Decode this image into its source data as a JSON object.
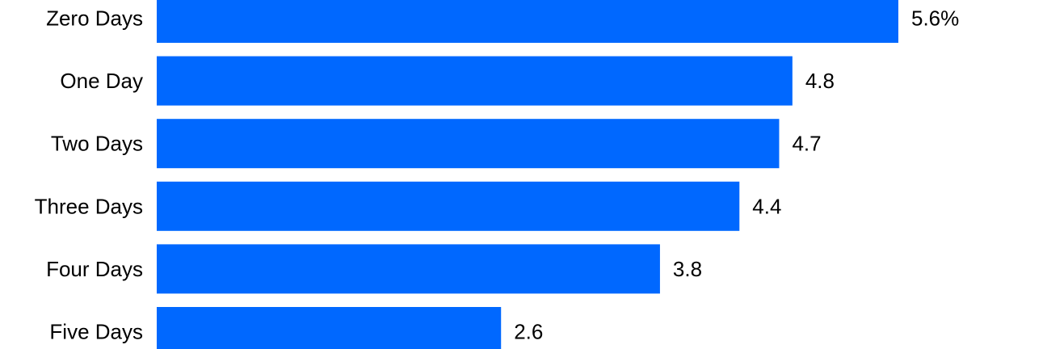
{
  "chart_data": {
    "type": "bar",
    "orientation": "horizontal",
    "categories": [
      "Zero Days",
      "One Day",
      "Two Days",
      "Three Days",
      "Four Days",
      "Five Days"
    ],
    "values": [
      5.6,
      4.8,
      4.7,
      4.4,
      3.8,
      2.6
    ],
    "value_labels": [
      "5.6%",
      "4.8",
      "4.7",
      "4.4",
      "3.8",
      "2.6"
    ],
    "title": "",
    "xlabel": "",
    "ylabel": "",
    "xlim": [
      0,
      5.6
    ],
    "grid": false,
    "legend": "none",
    "bar_color": "#0068ff"
  }
}
